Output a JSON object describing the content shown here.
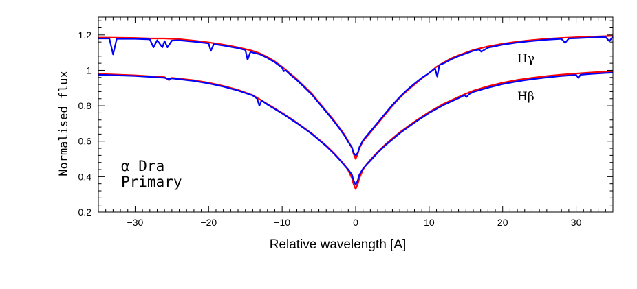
{
  "chart_data": {
    "type": "line",
    "title": "",
    "xlabel": "Relative wavelength [A]",
    "ylabel": "Normalised flux",
    "xlim": [
      -35,
      35
    ],
    "ylim": [
      0.2,
      1.3
    ],
    "x_ticks": [
      -30,
      -20,
      -10,
      0,
      10,
      20,
      30
    ],
    "x_tick_labels": [
      "−30",
      "−20",
      "−10",
      "0",
      "10",
      "20",
      "30"
    ],
    "y_ticks": [
      0.2,
      0.4,
      0.6,
      0.8,
      1.0,
      1.2
    ],
    "y_tick_labels": [
      "0.2",
      "0.4",
      "0.6",
      "0.8",
      "1",
      "1.2"
    ],
    "grid": false,
    "annotations": {
      "star_line1": "α Dra",
      "star_line2": "Primary",
      "upper_profile": "Hγ",
      "lower_profile": "Hβ"
    },
    "series": [
      {
        "profile": "Hγ",
        "color": "#ff0000",
        "x": [
          -35,
          -33.5,
          -30,
          -28,
          -26,
          -25,
          -24,
          -22,
          -20,
          -18,
          -16,
          -15,
          -14,
          -13,
          -12,
          -11,
          -10,
          -9,
          -8,
          -7,
          -6,
          -5,
          -4,
          -3,
          -2,
          -1.5,
          -1,
          -0.5,
          -0.3,
          0,
          0.3,
          0.5,
          1,
          1.5,
          2,
          3,
          4,
          5,
          6,
          7,
          8,
          9,
          10,
          11,
          12,
          13,
          14,
          15,
          16,
          18,
          20,
          22,
          24,
          26,
          28,
          30,
          32,
          34,
          35
        ],
        "y": [
          1.185,
          1.185,
          1.183,
          1.18,
          1.18,
          1.178,
          1.176,
          1.168,
          1.158,
          1.145,
          1.13,
          1.12,
          1.11,
          1.095,
          1.075,
          1.05,
          1.02,
          0.985,
          0.95,
          0.91,
          0.87,
          0.82,
          0.77,
          0.72,
          0.665,
          0.635,
          0.6,
          0.56,
          0.53,
          0.5,
          0.53,
          0.56,
          0.6,
          0.625,
          0.65,
          0.7,
          0.75,
          0.8,
          0.845,
          0.885,
          0.92,
          0.955,
          0.985,
          1.02,
          1.045,
          1.068,
          1.085,
          1.1,
          1.115,
          1.135,
          1.15,
          1.162,
          1.171,
          1.178,
          1.183,
          1.187,
          1.19,
          1.193,
          1.195
        ]
      },
      {
        "profile": "Hγ",
        "color": "#0000ff",
        "x": [
          -35,
          -33.5,
          -33,
          -32.5,
          -30,
          -28,
          -27.5,
          -27,
          -26.3,
          -26,
          -25.6,
          -25,
          -24,
          -22,
          -20,
          -19.7,
          -19.3,
          -18,
          -16,
          -15,
          -14.7,
          -14.3,
          -14,
          -13,
          -12,
          -11,
          -10,
          -9.8,
          -9.5,
          -9,
          -8,
          -7,
          -6,
          -5,
          -4,
          -3,
          -2,
          -1.5,
          -1,
          -0.5,
          -0.3,
          0,
          0.3,
          0.5,
          1,
          1.5,
          2,
          3,
          4,
          5,
          6,
          7,
          8,
          9,
          10,
          10.8,
          11.1,
          11.4,
          12,
          13,
          14,
          15,
          16,
          16.8,
          17.1,
          18,
          20,
          22,
          24,
          26,
          28,
          28.5,
          29,
          30,
          32,
          34,
          34.5,
          35
        ],
        "y": [
          1.18,
          1.18,
          1.09,
          1.178,
          1.178,
          1.175,
          1.13,
          1.17,
          1.13,
          1.165,
          1.13,
          1.168,
          1.17,
          1.162,
          1.152,
          1.11,
          1.148,
          1.14,
          1.125,
          1.115,
          1.06,
          1.105,
          1.1,
          1.09,
          1.07,
          1.045,
          1.015,
          0.995,
          1.0,
          0.98,
          0.945,
          0.905,
          0.865,
          0.815,
          0.765,
          0.715,
          0.66,
          0.63,
          0.595,
          0.565,
          0.535,
          0.52,
          0.535,
          0.565,
          0.605,
          0.63,
          0.655,
          0.705,
          0.755,
          0.805,
          0.85,
          0.89,
          0.925,
          0.958,
          0.985,
          1.01,
          0.965,
          1.03,
          1.04,
          1.062,
          1.08,
          1.095,
          1.11,
          1.118,
          1.105,
          1.128,
          1.145,
          1.157,
          1.166,
          1.173,
          1.178,
          1.155,
          1.18,
          1.181,
          1.185,
          1.188,
          1.165,
          1.19
        ]
      },
      {
        "profile": "Hβ",
        "color": "#ff0000",
        "x": [
          -35,
          -30,
          -26,
          -25.4,
          -25,
          -24.6,
          -22,
          -20,
          -18,
          -16,
          -14,
          -13,
          -12,
          -10,
          -8,
          -6,
          -5,
          -4,
          -3,
          -2,
          -1.5,
          -1,
          -0.5,
          -0.3,
          0,
          0.3,
          0.5,
          1,
          1.5,
          2,
          3,
          4,
          5,
          6,
          8,
          10,
          12,
          14,
          15,
          16,
          18,
          20,
          22,
          24,
          26,
          28,
          30,
          32,
          34,
          35
        ],
        "y": [
          0.98,
          0.972,
          0.962,
          0.945,
          0.958,
          0.956,
          0.944,
          0.93,
          0.912,
          0.89,
          0.86,
          0.835,
          0.81,
          0.76,
          0.705,
          0.645,
          0.61,
          0.575,
          0.535,
          0.49,
          0.465,
          0.435,
          0.39,
          0.36,
          0.33,
          0.36,
          0.39,
          0.44,
          0.47,
          0.495,
          0.54,
          0.58,
          0.615,
          0.65,
          0.71,
          0.765,
          0.812,
          0.85,
          0.868,
          0.885,
          0.91,
          0.93,
          0.946,
          0.958,
          0.968,
          0.976,
          0.982,
          0.988,
          0.993,
          0.995
        ]
      },
      {
        "profile": "Hβ",
        "color": "#0000ff",
        "x": [
          -35,
          -30,
          -26,
          -25.4,
          -25,
          -24.6,
          -22,
          -20,
          -18,
          -16,
          -14,
          -13.4,
          -13.1,
          -12.8,
          -12,
          -10,
          -8,
          -6,
          -5,
          -4,
          -3,
          -2,
          -1.5,
          -1,
          -0.5,
          -0.3,
          0,
          0.3,
          0.5,
          1,
          1.5,
          2,
          3,
          4,
          5,
          6,
          8,
          10,
          12,
          14,
          14.8,
          15.1,
          15.4,
          16,
          18,
          20,
          22,
          24,
          26,
          28,
          30,
          30.3,
          30.6,
          32,
          34,
          35
        ],
        "y": [
          0.975,
          0.968,
          0.958,
          0.95,
          0.955,
          0.953,
          0.94,
          0.926,
          0.908,
          0.886,
          0.858,
          0.84,
          0.8,
          0.83,
          0.807,
          0.757,
          0.702,
          0.642,
          0.607,
          0.572,
          0.532,
          0.487,
          0.462,
          0.44,
          0.41,
          0.38,
          0.355,
          0.38,
          0.41,
          0.445,
          0.468,
          0.49,
          0.535,
          0.575,
          0.61,
          0.645,
          0.705,
          0.76,
          0.805,
          0.843,
          0.86,
          0.85,
          0.865,
          0.878,
          0.902,
          0.922,
          0.938,
          0.95,
          0.96,
          0.968,
          0.974,
          0.958,
          0.975,
          0.98,
          0.985,
          0.987
        ]
      }
    ]
  }
}
